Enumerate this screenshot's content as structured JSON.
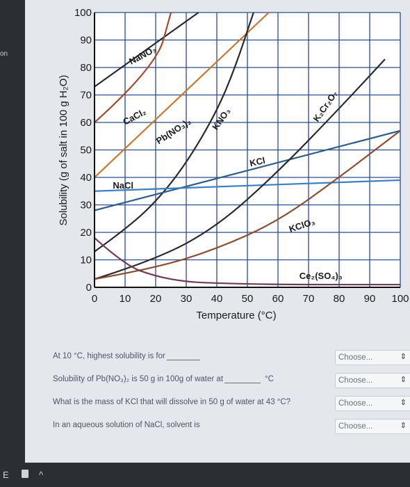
{
  "chart_data": {
    "type": "line",
    "xlabel": "Temperature (°C)",
    "ylabel": "Solubility (g of salt in 100 g H₂O)",
    "xlim": [
      0,
      100
    ],
    "ylim": [
      0,
      100
    ],
    "grid": true,
    "x_ticks": [
      "0",
      "10",
      "20",
      "30",
      "40",
      "50",
      "60",
      "70",
      "80",
      "90",
      "100"
    ],
    "y_ticks": [
      "0",
      "10",
      "20",
      "30",
      "40",
      "50",
      "60",
      "70",
      "80",
      "90",
      "100"
    ],
    "series": [
      {
        "name": "NaNO₃",
        "color": "#2a2a2a",
        "x": [
          0,
          34
        ],
        "y": [
          73,
          100
        ]
      },
      {
        "name": "CaCl₂",
        "color": "#a14a2a",
        "x": [
          0,
          20,
          25
        ],
        "y": [
          60,
          80,
          100
        ]
      },
      {
        "name": "Pb(NO₃)₂",
        "color": "#c8772e",
        "x": [
          0,
          57
        ],
        "y": [
          40,
          100
        ]
      },
      {
        "name": "KNO₃",
        "color": "#2a2a2a",
        "x": [
          0,
          10,
          20,
          30,
          40,
          46,
          52
        ],
        "y": [
          13,
          21,
          31,
          45,
          64,
          80,
          100
        ]
      },
      {
        "name": "KCl",
        "color": "#2f5d8a",
        "x": [
          0,
          100
        ],
        "y": [
          28,
          57
        ]
      },
      {
        "name": "NaCl",
        "color": "#3a7fc4",
        "x": [
          0,
          100
        ],
        "y": [
          35,
          39
        ]
      },
      {
        "name": "K₂Cr₂O₇",
        "color": "#2a2a2a",
        "x": [
          0,
          20,
          40,
          60,
          80,
          95
        ],
        "y": [
          3,
          10,
          22,
          42,
          65,
          83
        ]
      },
      {
        "name": "KClO₃",
        "color": "#8a4d2e",
        "x": [
          0,
          20,
          40,
          60,
          80,
          100
        ],
        "y": [
          3,
          7,
          14,
          24,
          40,
          57
        ]
      },
      {
        "name": "Ce₂(SO₄)₃",
        "color": "#6e3a5a",
        "x": [
          0,
          10,
          20,
          30,
          40,
          60,
          100
        ],
        "y": [
          18,
          8,
          4,
          2,
          1.5,
          1,
          1
        ]
      }
    ],
    "annotations": [
      "NaNO₃",
      "CaCl₂",
      "Pb(NO₃)₂",
      "KNO₃",
      "KCl",
      "NaCl",
      "K₂Cr₂O₇",
      "KClO₃",
      "Ce₂(SO₄)₃"
    ]
  },
  "questions": [
    {
      "prefix": "At 10 °C, highest solubility is for",
      "suffix": "",
      "dropdown": "Choose..."
    },
    {
      "prefix": "Solubility of Pb(NO₃)₂ is 50 g in 100g of water at",
      "suffix": "°C",
      "dropdown": "Choose..."
    },
    {
      "prefix": "What is the mass of KCl that will dissolve in 50 g of water at 43 °C?",
      "suffix": "",
      "dropdown": "Choose..."
    },
    {
      "prefix": "In an aqueous solution of NaCl, solvent is",
      "suffix": "",
      "dropdown": "Choose..."
    }
  ],
  "dropdown_arrow": "⇕",
  "left_edge_text": "on",
  "taskbar": {
    "left_glyph": "E",
    "caret": "^"
  }
}
